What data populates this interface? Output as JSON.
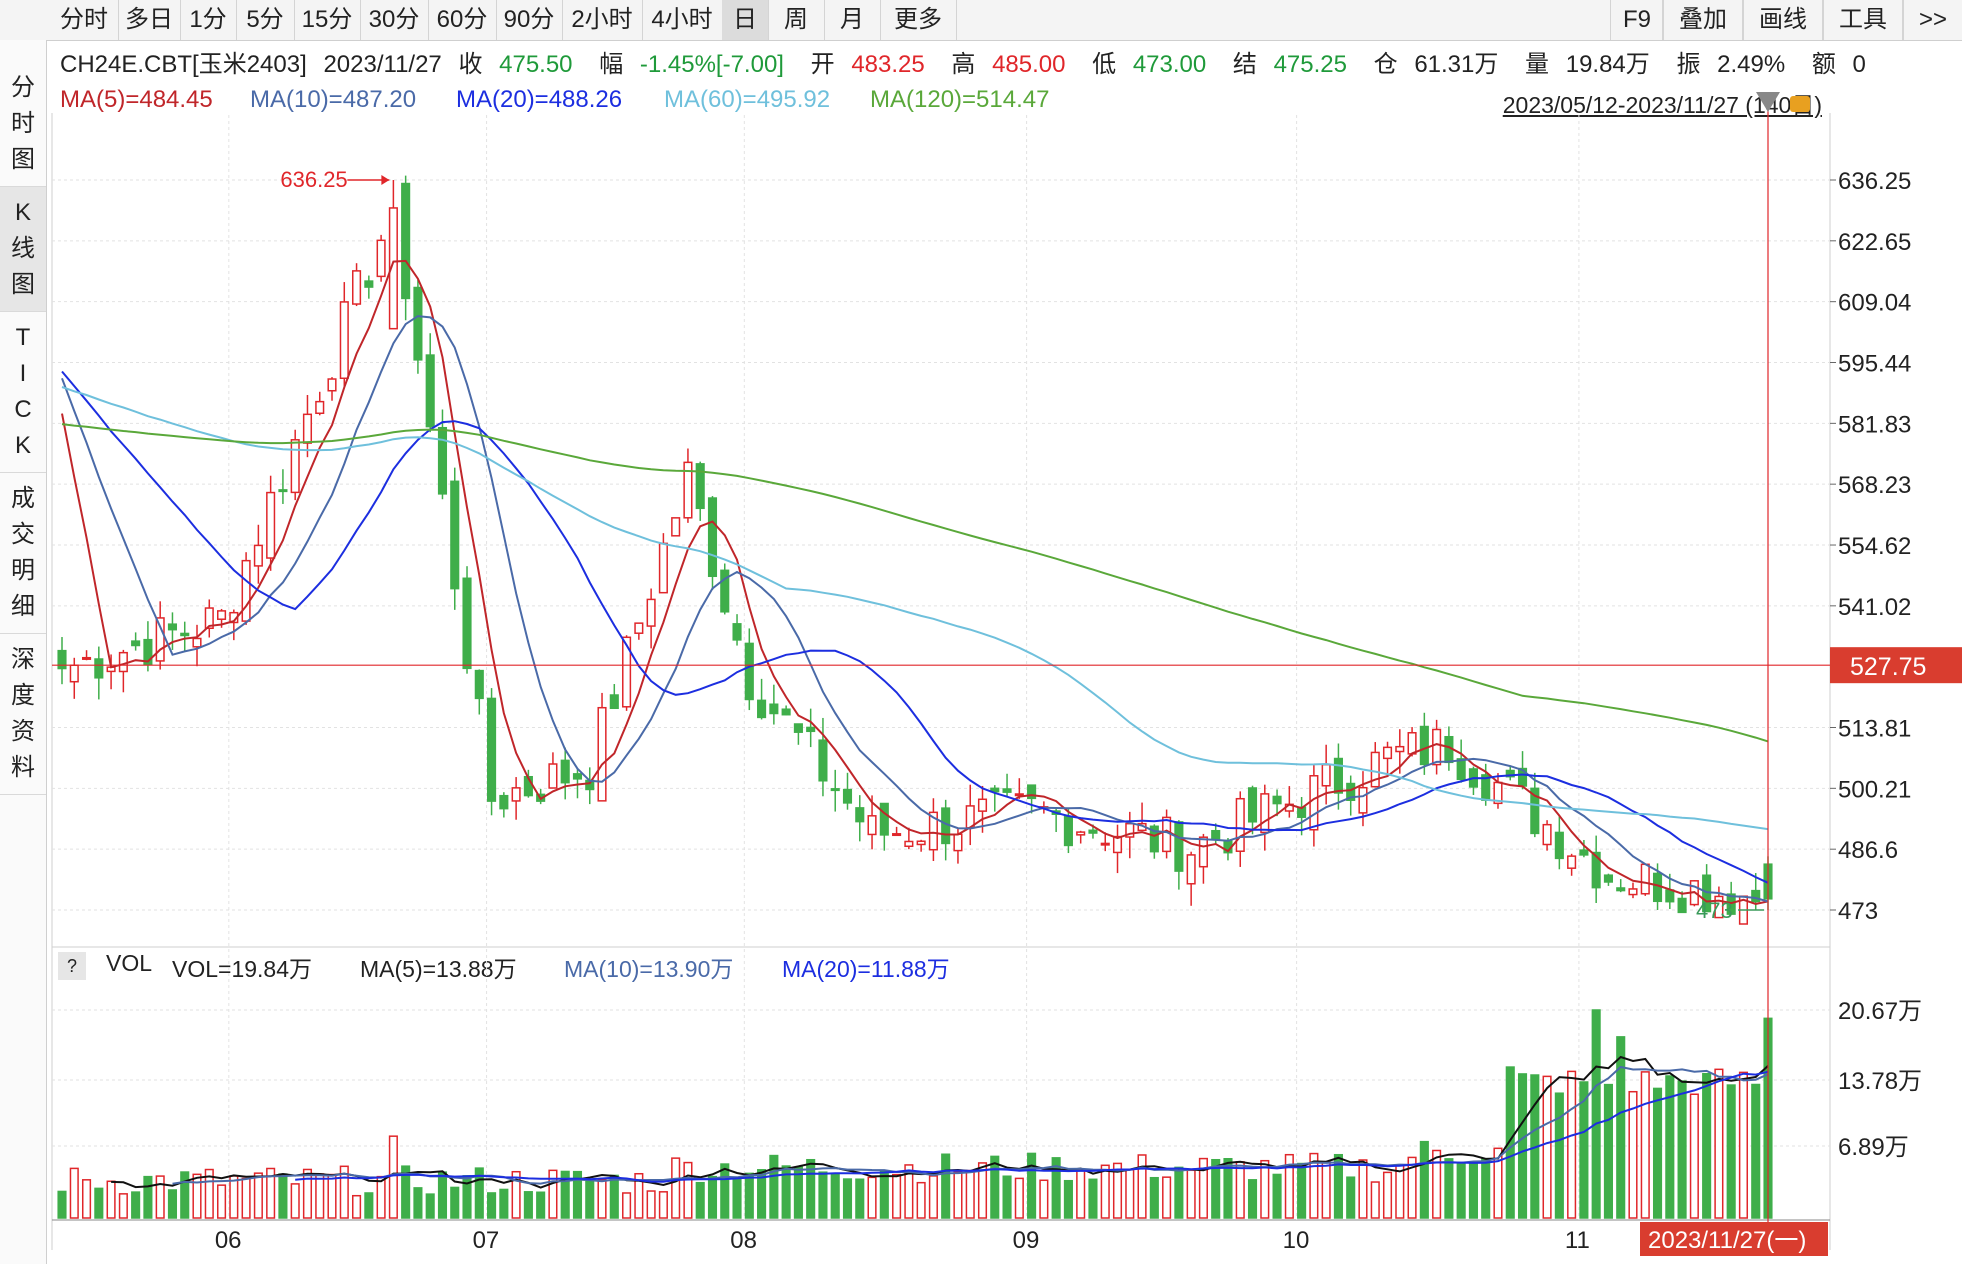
{
  "periods": [
    "分时",
    "多日",
    "1分",
    "5分",
    "15分",
    "30分",
    "60分",
    "90分",
    "2小时",
    "4小时",
    "日",
    "周",
    "月",
    "更多"
  ],
  "active_period": "日",
  "right_tools": [
    "F9",
    "叠加",
    "画线",
    "工具",
    ">>"
  ],
  "side_tabs": [
    {
      "label": "分时图",
      "chars": [
        "分",
        "时",
        "图"
      ]
    },
    {
      "label": "K线图",
      "chars": [
        "K",
        "线",
        "图"
      ]
    },
    {
      "label": "TICK",
      "chars": [
        "T",
        "I",
        "C",
        "K"
      ]
    },
    {
      "label": "成交明细",
      "chars": [
        "成",
        "交",
        "明",
        "细"
      ]
    },
    {
      "label": "深度资料",
      "chars": [
        "深",
        "度",
        "资",
        "料"
      ]
    }
  ],
  "active_side_tab": "K线图",
  "quote": {
    "symbol": "CH24E.CBT[玉米2403]",
    "date": "2023/11/27",
    "close_label": "收",
    "close": "475.50",
    "change_label": "幅",
    "change": "-1.45%[-7.00]",
    "open_label": "开",
    "open": "483.25",
    "high_label": "高",
    "high": "485.00",
    "low_label": "低",
    "low": "473.00",
    "settle_label": "结",
    "settle": "475.25",
    "oi_label": "仓",
    "oi": "61.31万",
    "volume_label": "量",
    "volume": "19.84万",
    "amp_label": "振",
    "amp": "2.49%",
    "amount_label": "额",
    "amount": "0"
  },
  "ma_legend": [
    {
      "text": "MA(5)=484.45",
      "color": "#c0262a"
    },
    {
      "text": "MA(10)=487.20",
      "color": "#4a6aa8"
    },
    {
      "text": "MA(20)=488.26",
      "color": "#1c2ee0"
    },
    {
      "text": "MA(60)=495.92",
      "color": "#6fc0dc"
    },
    {
      "text": "MA(120)=514.47",
      "color": "#5aa83a"
    }
  ],
  "date_range": "2023/05/12-2023/11/27 (140日)",
  "vol_legend": {
    "help": "?",
    "name": "VOL",
    "items": [
      {
        "text": "VOL=19.84万",
        "color": "#222"
      },
      {
        "text": "MA(5)=13.88万",
        "color": "#222"
      },
      {
        "text": "MA(10)=13.90万",
        "color": "#4a6aa8"
      },
      {
        "text": "MA(20)=11.88万",
        "color": "#1c2ee0"
      }
    ]
  },
  "colors": {
    "up": "#e0262a",
    "down": "#3fae4a",
    "crosshair": "#e0262a",
    "cursor_label_bg": "#d93d2f"
  },
  "chart_data": {
    "type": "candlestick",
    "y_ticks": [
      "636.25",
      "622.65",
      "609.04",
      "595.44",
      "581.83",
      "568.23",
      "554.62",
      "541.02",
      "513.81",
      "500.21",
      "486.6",
      "473"
    ],
    "crosshair_price": "527.75",
    "high_marker": "636.25",
    "low_marker": "473",
    "month_labels": [
      "06",
      "07",
      "08",
      "09",
      "10",
      "11"
    ],
    "cursor_date": "2023/11/27(一)",
    "vol_ticks": [
      "20.67万",
      "13.78万",
      "6.89万"
    ],
    "price_range": [
      473,
      636.25
    ],
    "volume_max_wan": 20.67,
    "ma_levels_end": {
      "ma5": 484.45,
      "ma10": 487.2,
      "ma20": 488.26,
      "ma60": 495.92,
      "ma120": 514.47
    },
    "period_points": [
      {
        "date": "2023/05/12",
        "close": 527.0
      },
      {
        "date": "2023/06/01",
        "close": 538.0
      },
      {
        "date": "2023/06/21",
        "close": 630.0
      },
      {
        "date": "2023/07/03",
        "close": 498.0
      },
      {
        "date": "2023/07/14",
        "close": 505.0
      },
      {
        "date": "2023/07/25",
        "close": 570.0
      },
      {
        "date": "2023/08/01",
        "close": 525.0
      },
      {
        "date": "2023/08/15",
        "close": 490.0
      },
      {
        "date": "2023/09/01",
        "close": 495.0
      },
      {
        "date": "2023/09/20",
        "close": 487.0
      },
      {
        "date": "2023/10/13",
        "close": 507.0
      },
      {
        "date": "2023/10/20",
        "close": 510.0
      },
      {
        "date": "2023/11/08",
        "close": 481.0
      },
      {
        "date": "2023/11/27",
        "close": 475.5
      }
    ]
  }
}
